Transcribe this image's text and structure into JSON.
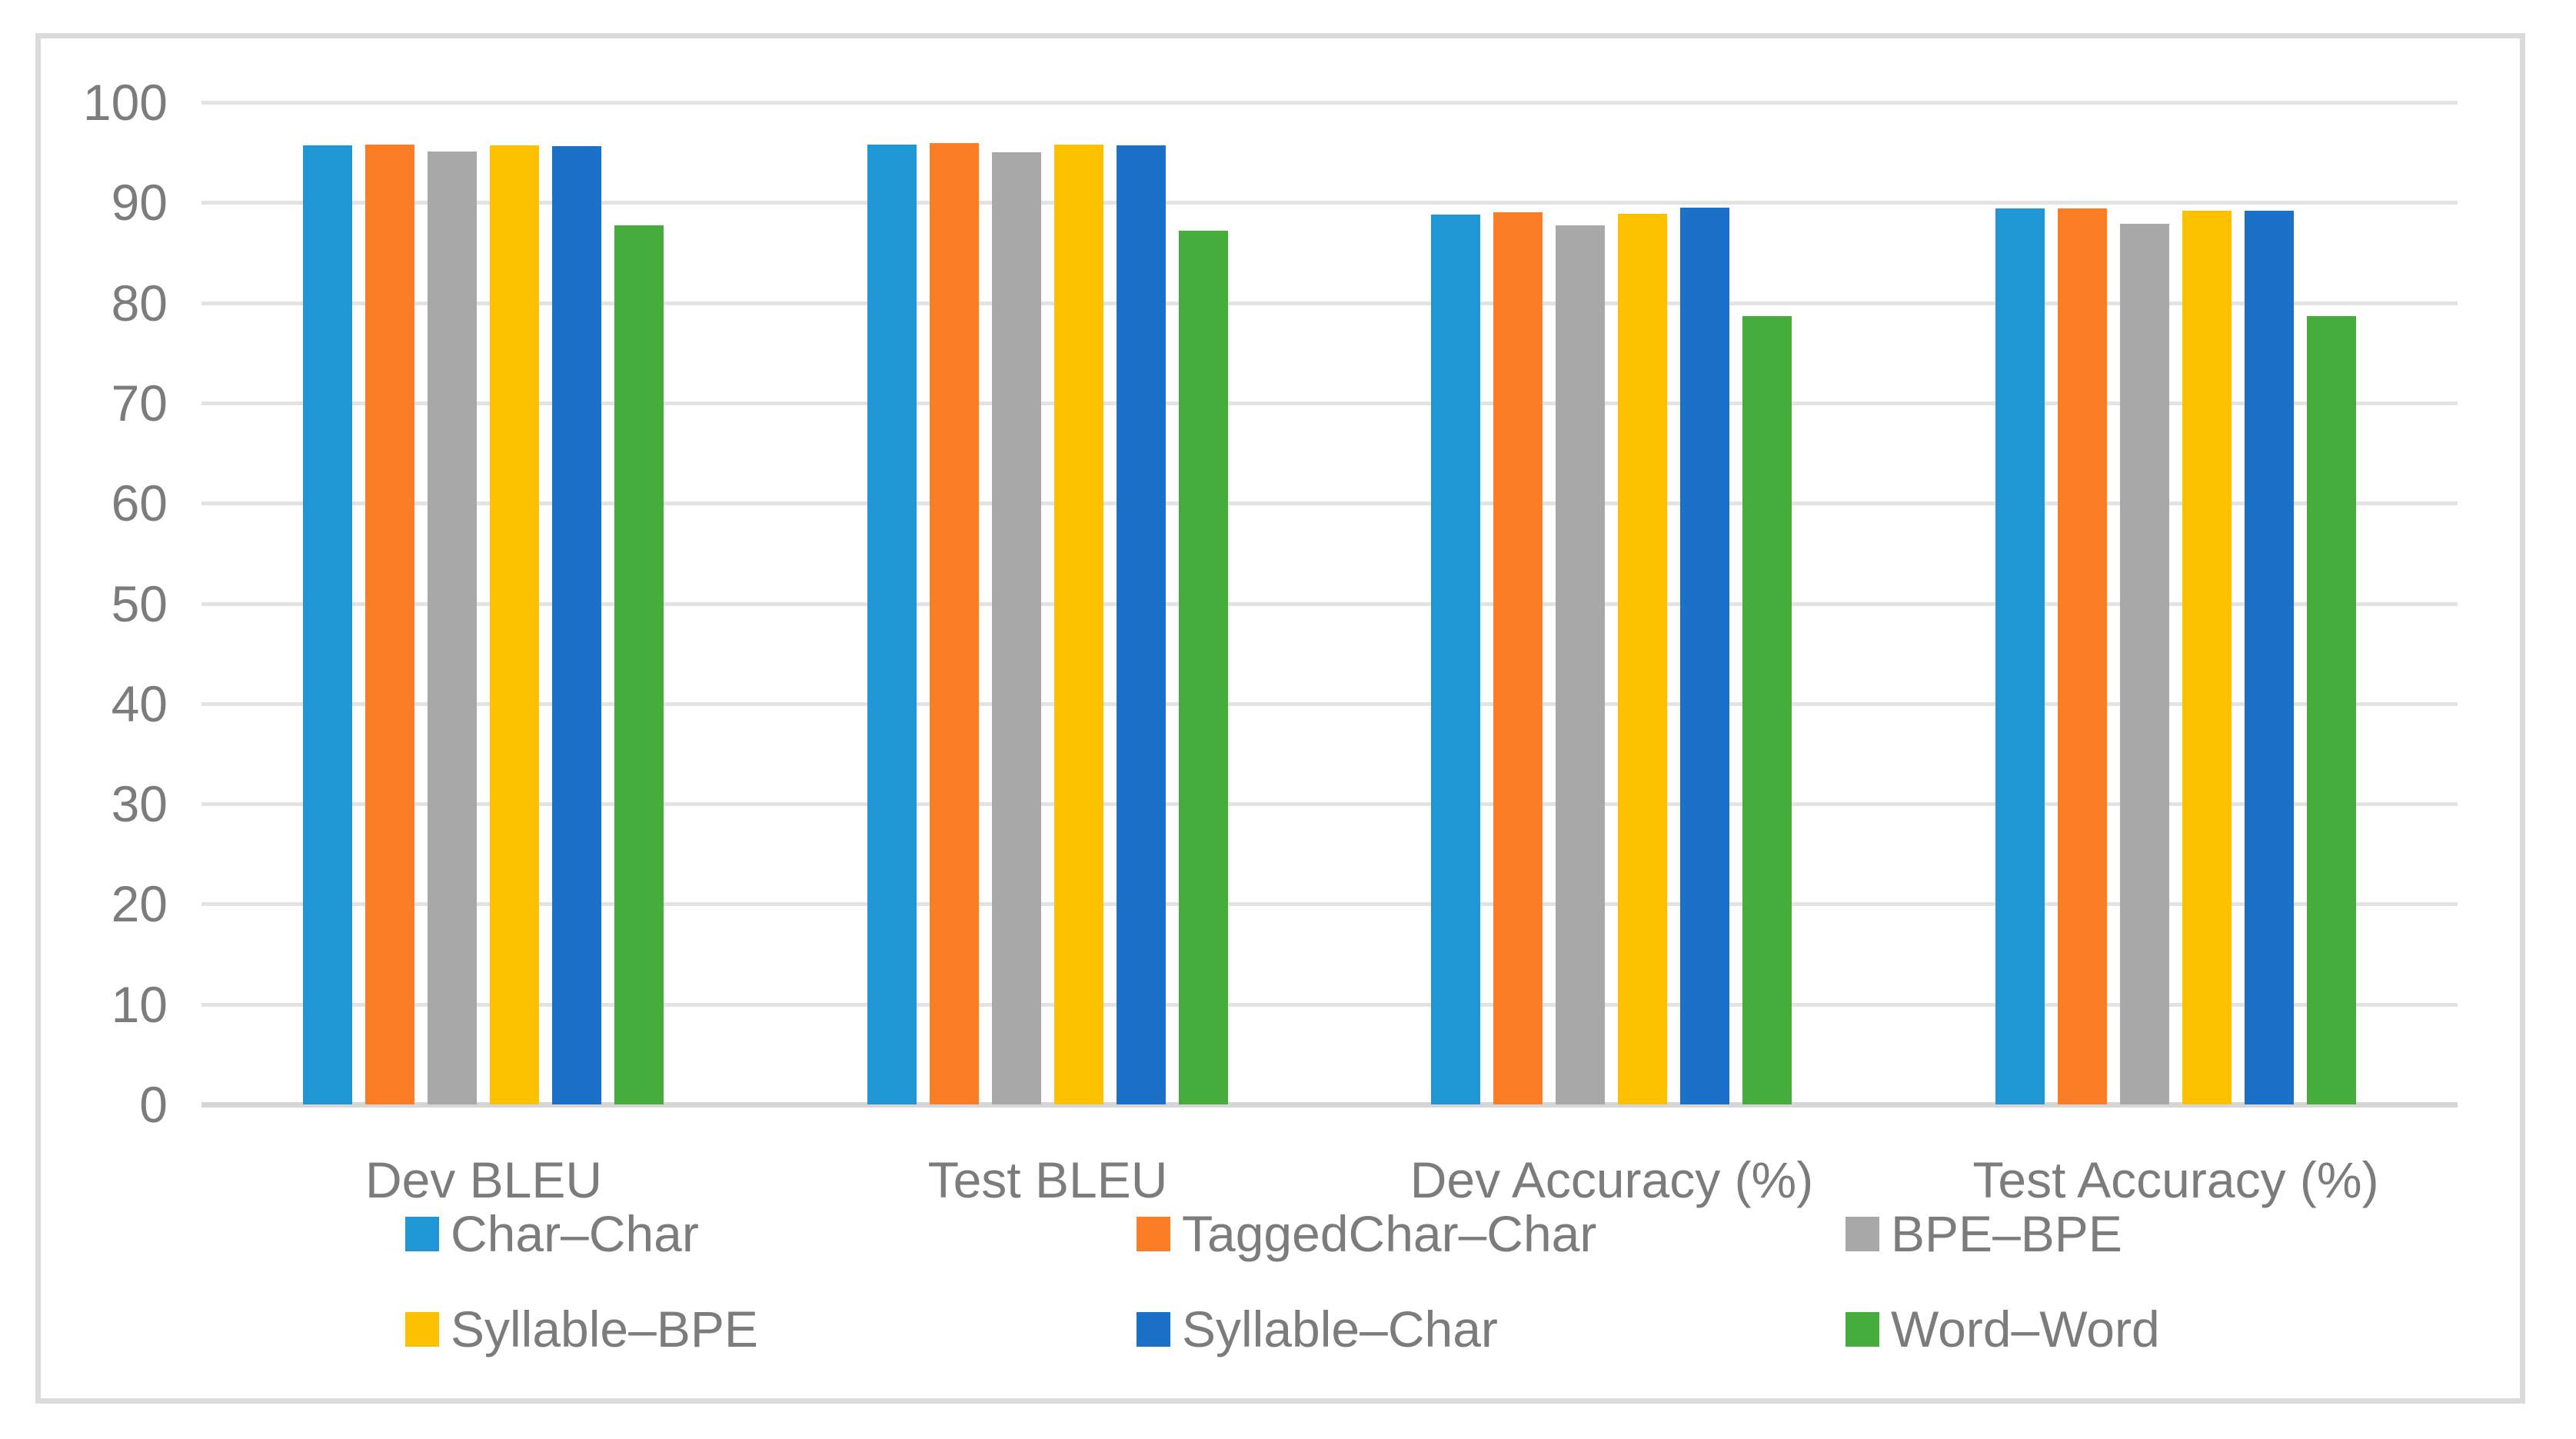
{
  "chart_data": {
    "type": "bar",
    "title": "",
    "xlabel": "",
    "ylabel": "",
    "categories": [
      "Dev BLEU",
      "Test BLEU",
      "Dev Accuracy (%)",
      "Test Accuracy (%)"
    ],
    "series": [
      {
        "name": "Char–Char",
        "color": "#2196D5",
        "values": [
          95.7,
          95.8,
          88.8,
          89.4
        ]
      },
      {
        "name": "TaggedChar–Char",
        "color": "#FB7D26",
        "values": [
          95.8,
          95.9,
          89.0,
          89.4
        ]
      },
      {
        "name": "BPE–BPE",
        "color": "#A8A8A8",
        "values": [
          95.1,
          95.0,
          87.7,
          87.9
        ]
      },
      {
        "name": "Syllable–BPE",
        "color": "#FEC100",
        "values": [
          95.7,
          95.8,
          88.9,
          89.2
        ]
      },
      {
        "name": "Syllable–Char",
        "color": "#1B71C8",
        "values": [
          95.6,
          95.7,
          89.5,
          89.2
        ]
      },
      {
        "name": "Word–Word",
        "color": "#46AC3B",
        "values": [
          87.7,
          87.2,
          78.7,
          78.7
        ]
      }
    ],
    "ylim": [
      0,
      100
    ],
    "yticks": [
      0,
      10,
      20,
      30,
      40,
      50,
      60,
      70,
      80,
      90,
      100
    ],
    "grid": true,
    "legend_position": "bottom",
    "legend_rows": 2,
    "axis_line_color": "#D6D6D6",
    "gridline_color": "#E3E3E3",
    "text_color": "#7C7C7C",
    "frame_border_color": "#DBDBDB",
    "background_color": "#FFFFFF"
  }
}
